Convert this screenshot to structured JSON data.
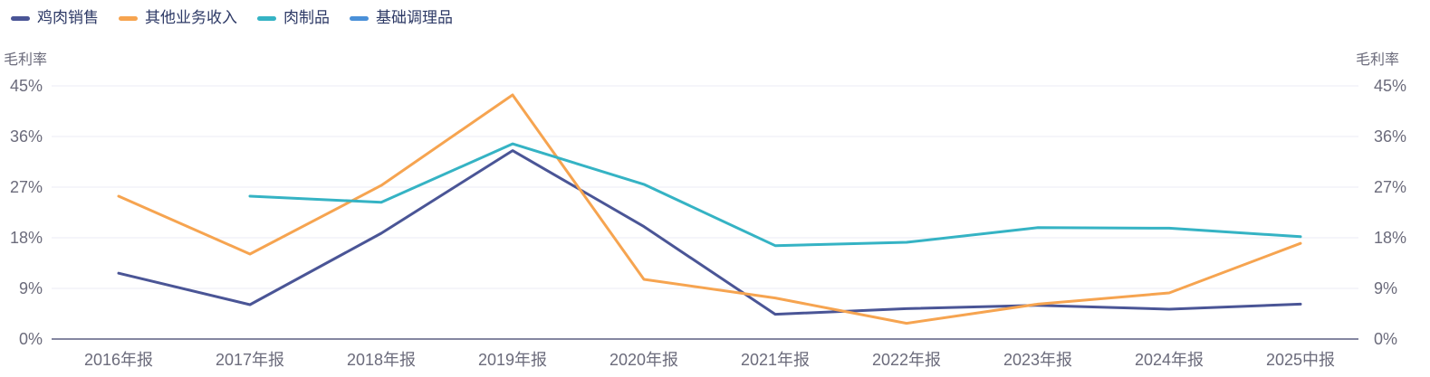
{
  "page": {
    "background": "#ffffff"
  },
  "colors": {
    "legend_text": "#2e3a66",
    "axis_text": "#6b6b7b",
    "gridline": "#ebebf4",
    "axis_line": "#5c5f82"
  },
  "axes": {
    "left_title": "毛利率",
    "right_title": "毛利率"
  },
  "chart_data": {
    "type": "line",
    "title": "",
    "ylabel_left": "毛利率",
    "ylabel_right": "毛利率",
    "ylim": [
      0,
      45
    ],
    "y_ticks": [
      0,
      9,
      18,
      27,
      36,
      45
    ],
    "y_tick_suffix": "%",
    "grid": true,
    "legend_position": "top-left",
    "categories": [
      "2016年报",
      "2017年报",
      "2018年报",
      "2019年报",
      "2020年报",
      "2021年报",
      "2022年报",
      "2023年报",
      "2024年报",
      "2025中报"
    ],
    "series": [
      {
        "name": "鸡肉销售",
        "color": "#4a5596",
        "values": [
          11.7,
          6.1,
          18.8,
          33.5,
          20.0,
          4.4,
          5.4,
          6.0,
          5.3,
          6.2
        ]
      },
      {
        "name": "其他业务收入",
        "color": "#f6a450",
        "values": [
          25.4,
          15.1,
          27.3,
          43.4,
          10.6,
          7.3,
          2.8,
          6.2,
          8.2,
          17.0
        ]
      },
      {
        "name": "肉制品",
        "color": "#35b3c4",
        "values": [
          null,
          25.4,
          24.3,
          34.7,
          27.5,
          16.6,
          17.2,
          19.8,
          19.7,
          18.2
        ]
      },
      {
        "name": "基础调理品",
        "color": "#4a90d8",
        "values": [
          null,
          null,
          null,
          null,
          null,
          null,
          null,
          null,
          null,
          null
        ]
      }
    ]
  }
}
